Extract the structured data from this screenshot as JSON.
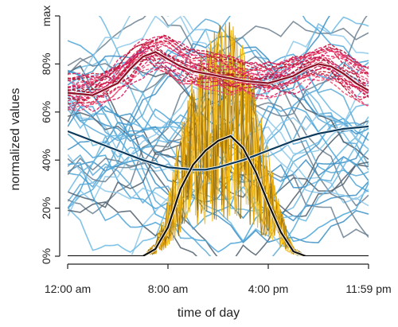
{
  "chart_data": {
    "type": "line",
    "title": "",
    "xlabel": "time of day",
    "ylabel": "normalized values",
    "x_ticks": [
      "12:00 am",
      "8:00 am",
      "4:00 pm",
      "11:59 pm"
    ],
    "x_tick_hours": [
      0,
      8,
      16,
      24
    ],
    "y_ticks": [
      "0%",
      "20%",
      "40%",
      "60%",
      "80%",
      "max"
    ],
    "y_tick_values": [
      0,
      20,
      40,
      60,
      80,
      100
    ],
    "xlim": [
      0,
      24
    ],
    "ylim": [
      0,
      100
    ],
    "grid": false,
    "legend": "none",
    "series_groups": [
      {
        "color": "#c8102e",
        "style": "dashed",
        "note_count": 25,
        "mean_curve": {
          "color": "#8b0d22",
          "x": [
            0,
            2,
            4,
            5,
            6,
            7,
            8,
            9,
            10,
            12,
            14,
            16,
            18,
            19,
            20,
            21,
            22,
            23,
            24
          ],
          "y": [
            68,
            67,
            72,
            78,
            83,
            85,
            82,
            79,
            77,
            75,
            73,
            72,
            75,
            78,
            80,
            79,
            76,
            72,
            69
          ]
        }
      },
      {
        "color": "#4aa3d8",
        "note_count": 40,
        "mean_curve": {
          "color": "#0b3a5c",
          "x": [
            0,
            2,
            4,
            6,
            8,
            10,
            11,
            12,
            14,
            16,
            18,
            20,
            22,
            24
          ],
          "y": [
            52,
            48,
            44,
            40,
            37,
            36,
            36,
            37,
            40,
            44,
            48,
            51,
            53,
            54
          ]
        }
      },
      {
        "color": "#f5b800",
        "mean_curve": {
          "color": "#111111",
          "x": [
            0,
            6,
            7,
            8,
            9,
            10,
            11,
            12,
            13,
            14,
            15,
            16,
            17,
            18,
            19,
            24
          ],
          "y": [
            0,
            0,
            3,
            12,
            28,
            38,
            44,
            48,
            50,
            45,
            35,
            22,
            10,
            2,
            0,
            0
          ]
        }
      }
    ]
  }
}
